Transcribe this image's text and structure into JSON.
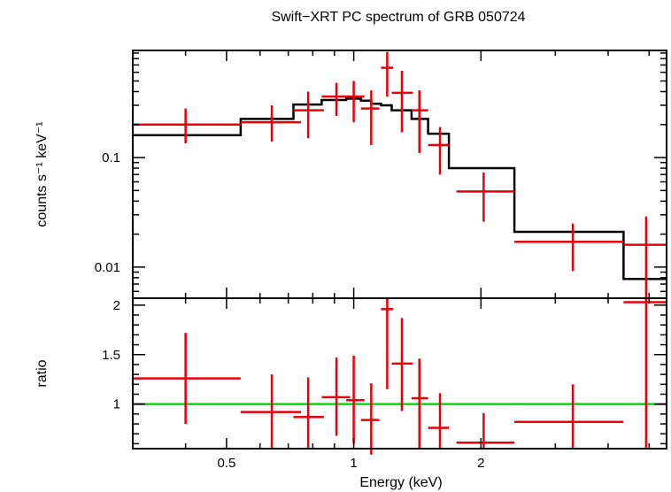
{
  "chart_data": [
    {
      "type": "scatter",
      "title": "Swift−XRT PC spectrum of GRB 050724",
      "ylabel": "counts s⁻¹ keV⁻¹",
      "xscale": "log",
      "yscale": "log",
      "xlim": [
        0.3,
        5.5
      ],
      "ylim": [
        0.0052,
        0.95
      ],
      "yticks": [
        {
          "value": 0.01,
          "label": "0.01"
        },
        {
          "value": 0.1,
          "label": "0.1"
        }
      ],
      "data_color": "#e8000b",
      "model_color": "#000000",
      "data": [
        {
          "x": 0.4,
          "xerr": [
            0.3,
            0.54
          ],
          "y": 0.2,
          "yerr": [
            0.135,
            0.28
          ]
        },
        {
          "x": 0.64,
          "xerr": [
            0.54,
            0.75
          ],
          "y": 0.21,
          "yerr": [
            0.14,
            0.3
          ]
        },
        {
          "x": 0.78,
          "xerr": [
            0.72,
            0.85
          ],
          "y": 0.27,
          "yerr": [
            0.15,
            0.4
          ]
        },
        {
          "x": 0.91,
          "xerr": [
            0.84,
            0.98
          ],
          "y": 0.36,
          "yerr": [
            0.24,
            0.48
          ]
        },
        {
          "x": 1.0,
          "xerr": [
            0.96,
            1.06
          ],
          "y": 0.36,
          "yerr": [
            0.21,
            0.5
          ]
        },
        {
          "x": 1.1,
          "xerr": [
            1.04,
            1.15
          ],
          "y": 0.28,
          "yerr": [
            0.13,
            0.41
          ]
        },
        {
          "x": 1.2,
          "xerr": [
            1.16,
            1.24
          ],
          "y": 0.66,
          "yerr": [
            0.36,
            0.92
          ]
        },
        {
          "x": 1.3,
          "xerr": [
            1.23,
            1.38
          ],
          "y": 0.39,
          "yerr": [
            0.17,
            0.62
          ]
        },
        {
          "x": 1.43,
          "xerr": [
            1.37,
            1.5
          ],
          "y": 0.27,
          "yerr": [
            0.11,
            0.41
          ]
        },
        {
          "x": 1.6,
          "xerr": [
            1.5,
            1.68
          ],
          "y": 0.13,
          "yerr": [
            0.07,
            0.19
          ]
        },
        {
          "x": 2.03,
          "xerr": [
            1.75,
            2.4
          ],
          "y": 0.049,
          "yerr": [
            0.026,
            0.073
          ]
        },
        {
          "x": 3.3,
          "xerr": [
            2.4,
            4.35
          ],
          "y": 0.017,
          "yerr": [
            0.0092,
            0.025
          ]
        },
        {
          "x": 4.92,
          "xerr": [
            4.35,
            5.5
          ],
          "y": 0.016,
          "yerr": [
            0.0052,
            0.029
          ]
        }
      ],
      "model_steps": [
        {
          "x0": 0.3,
          "x1": 0.54,
          "y": 0.16
        },
        {
          "x0": 0.54,
          "x1": 0.72,
          "y": 0.225
        },
        {
          "x0": 0.72,
          "x1": 0.84,
          "y": 0.305
        },
        {
          "x0": 0.84,
          "x1": 0.96,
          "y": 0.335
        },
        {
          "x0": 0.96,
          "x1": 1.04,
          "y": 0.345
        },
        {
          "x0": 1.04,
          "x1": 1.1,
          "y": 0.33
        },
        {
          "x0": 1.1,
          "x1": 1.16,
          "y": 0.31
        },
        {
          "x0": 1.16,
          "x1": 1.23,
          "y": 0.3
        },
        {
          "x0": 1.23,
          "x1": 1.37,
          "y": 0.27
        },
        {
          "x0": 1.37,
          "x1": 1.5,
          "y": 0.225
        },
        {
          "x0": 1.5,
          "x1": 1.68,
          "y": 0.165
        },
        {
          "x0": 1.68,
          "x1": 2.4,
          "y": 0.08
        },
        {
          "x0": 2.4,
          "x1": 4.35,
          "y": 0.021
        },
        {
          "x0": 4.35,
          "x1": 5.5,
          "y": 0.0078
        }
      ]
    },
    {
      "type": "scatter",
      "xlabel": "Energy (keV)",
      "ylabel": "ratio",
      "xscale": "log",
      "xlim": [
        0.3,
        5.5
      ],
      "ylim": [
        0.55,
        2.07
      ],
      "xticks": [
        {
          "value": 0.5,
          "label": "0.5"
        },
        {
          "value": 1,
          "label": "1"
        },
        {
          "value": 2,
          "label": "2"
        }
      ],
      "yticks": [
        {
          "value": 1,
          "label": "1"
        },
        {
          "value": 1.5,
          "label": "1.5"
        },
        {
          "value": 2,
          "label": "2"
        }
      ],
      "reference_line": {
        "y": 1,
        "color": "#00e000"
      },
      "data_color": "#e8000b",
      "data": [
        {
          "x": 0.4,
          "xerr": [
            0.3,
            0.54
          ],
          "y": 1.26,
          "yerr": [
            0.8,
            1.72
          ]
        },
        {
          "x": 0.64,
          "xerr": [
            0.54,
            0.75
          ],
          "y": 0.92,
          "yerr": [
            0.55,
            1.3
          ]
        },
        {
          "x": 0.78,
          "xerr": [
            0.72,
            0.85
          ],
          "y": 0.87,
          "yerr": [
            0.56,
            1.27
          ]
        },
        {
          "x": 0.91,
          "xerr": [
            0.84,
            0.98
          ],
          "y": 1.07,
          "yerr": [
            0.68,
            1.47
          ]
        },
        {
          "x": 1.0,
          "xerr": [
            0.96,
            1.06
          ],
          "y": 1.04,
          "yerr": [
            0.6,
            1.49
          ]
        },
        {
          "x": 1.1,
          "xerr": [
            1.04,
            1.15
          ],
          "y": 0.84,
          "yerr": [
            0.49,
            1.21
          ]
        },
        {
          "x": 1.2,
          "xerr": [
            1.16,
            1.24
          ],
          "y": 1.96,
          "yerr": [
            1.15,
            2.07
          ]
        },
        {
          "x": 1.3,
          "xerr": [
            1.23,
            1.38
          ],
          "y": 1.41,
          "yerr": [
            0.93,
            1.87
          ]
        },
        {
          "x": 1.43,
          "xerr": [
            1.37,
            1.5
          ],
          "y": 1.06,
          "yerr": [
            0.55,
            1.46
          ]
        },
        {
          "x": 1.6,
          "xerr": [
            1.5,
            1.68
          ],
          "y": 0.76,
          "yerr": [
            0.55,
            1.11
          ]
        },
        {
          "x": 2.03,
          "xerr": [
            1.75,
            2.4
          ],
          "y": 0.61,
          "yerr": [
            0.55,
            0.91
          ]
        },
        {
          "x": 3.3,
          "xerr": [
            2.4,
            4.35
          ],
          "y": 0.82,
          "yerr": [
            0.55,
            1.2
          ]
        },
        {
          "x": 4.92,
          "xerr": [
            4.35,
            5.5
          ],
          "y": 2.03,
          "yerr": [
            0.55,
            2.07
          ]
        }
      ]
    }
  ]
}
